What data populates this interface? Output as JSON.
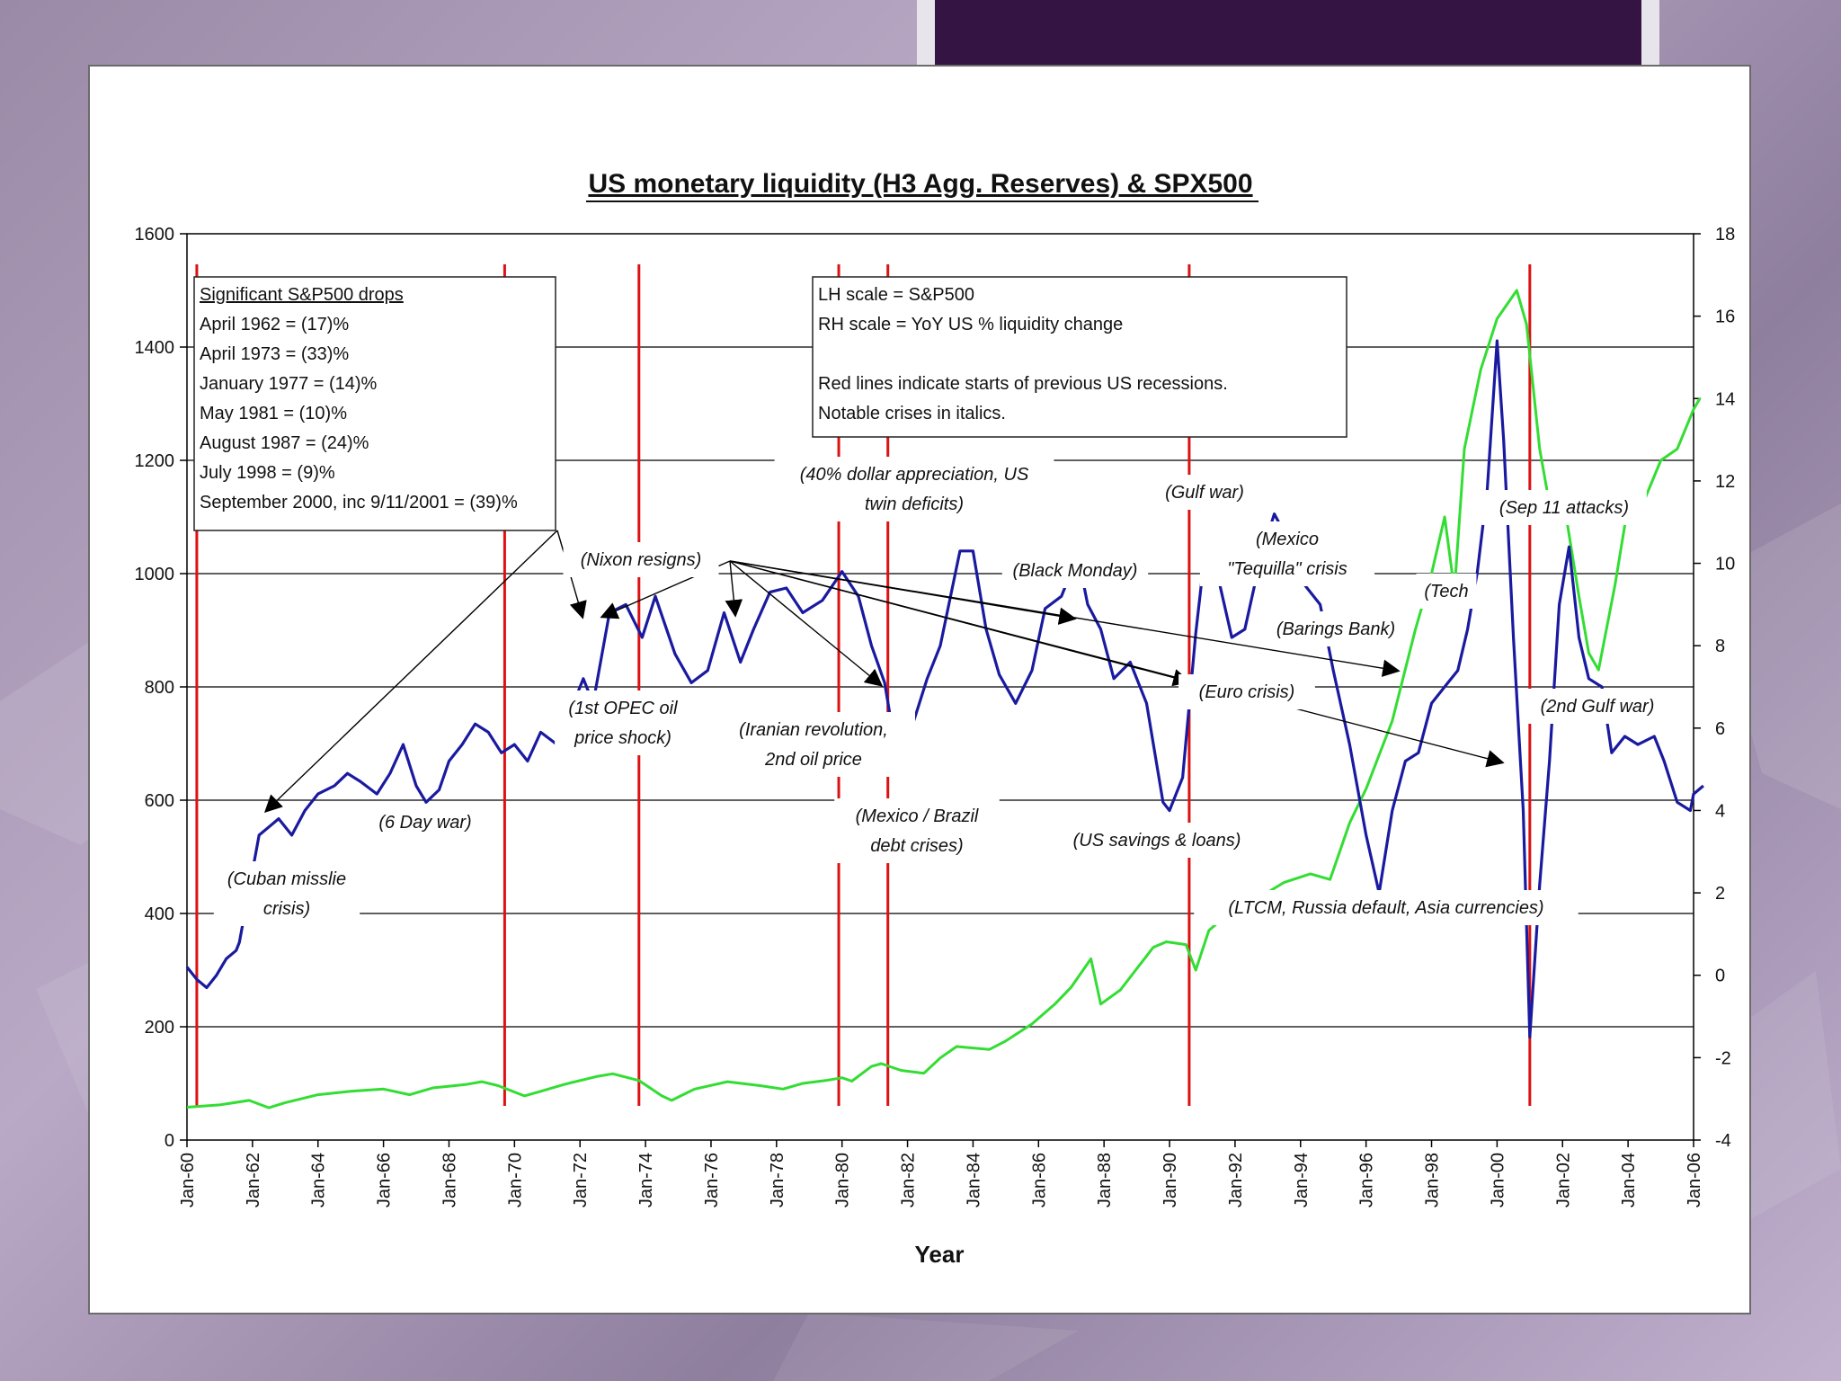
{
  "chart_data": {
    "type": "line",
    "title": "US monetary liquidity (H3 Agg. Reserves) & SPX500",
    "xlabel": "Year",
    "ylabel_left": "LH scale = S&P500",
    "ylabel_right": "RH scale = YoY US % liquidity change",
    "ylim_left": [
      0,
      1600
    ],
    "ylim_right": [
      -4,
      18
    ],
    "x_range": [
      1960.0,
      2006.0
    ],
    "x_ticks": [
      "Jan-60",
      "Jan-62",
      "Jan-64",
      "Jan-66",
      "Jan-68",
      "Jan-70",
      "Jan-72",
      "Jan-74",
      "Jan-76",
      "Jan-78",
      "Jan-80",
      "Jan-82",
      "Jan-84",
      "Jan-86",
      "Jan-88",
      "Jan-90",
      "Jan-92",
      "Jan-94",
      "Jan-96",
      "Jan-98",
      "Jan-00",
      "Jan-02",
      "Jan-04",
      "Jan-06"
    ],
    "y_ticks_left": [
      "1600",
      "1400",
      "1200",
      "1000",
      "800",
      "600",
      "400",
      "200",
      "0"
    ],
    "y_ticks_right": [
      "18",
      "16",
      "14",
      "12",
      "10",
      "8",
      "6",
      "4",
      "2",
      "0",
      "-2",
      "-4"
    ],
    "recession_lines": [
      1960.3,
      1969.7,
      1973.8,
      1979.9,
      1981.4,
      1990.6,
      2001.0
    ],
    "series": [
      {
        "name": "S&P500",
        "axis": "left",
        "color": "#33dd33",
        "points": [
          [
            1960.0,
            58
          ],
          [
            1961.0,
            62
          ],
          [
            1961.9,
            70
          ],
          [
            1962.5,
            57
          ],
          [
            1963.0,
            66
          ],
          [
            1964.0,
            80
          ],
          [
            1965.0,
            86
          ],
          [
            1966.0,
            90
          ],
          [
            1966.8,
            80
          ],
          [
            1967.5,
            92
          ],
          [
            1968.5,
            98
          ],
          [
            1969.0,
            103
          ],
          [
            1969.5,
            96
          ],
          [
            1970.3,
            78
          ],
          [
            1970.8,
            86
          ],
          [
            1971.5,
            98
          ],
          [
            1972.5,
            112
          ],
          [
            1973.0,
            117
          ],
          [
            1973.8,
            105
          ],
          [
            1974.5,
            78
          ],
          [
            1974.8,
            70
          ],
          [
            1975.5,
            90
          ],
          [
            1976.5,
            103
          ],
          [
            1977.5,
            96
          ],
          [
            1978.2,
            90
          ],
          [
            1978.8,
            100
          ],
          [
            1979.5,
            105
          ],
          [
            1980.0,
            110
          ],
          [
            1980.3,
            104
          ],
          [
            1980.9,
            130
          ],
          [
            1981.2,
            135
          ],
          [
            1981.8,
            123
          ],
          [
            1982.5,
            118
          ],
          [
            1983.0,
            145
          ],
          [
            1983.5,
            165
          ],
          [
            1984.5,
            160
          ],
          [
            1985.0,
            175
          ],
          [
            1985.8,
            205
          ],
          [
            1986.5,
            240
          ],
          [
            1987.0,
            270
          ],
          [
            1987.6,
            320
          ],
          [
            1987.9,
            240
          ],
          [
            1988.5,
            265
          ],
          [
            1989.5,
            340
          ],
          [
            1989.9,
            350
          ],
          [
            1990.5,
            345
          ],
          [
            1990.8,
            300
          ],
          [
            1991.2,
            370
          ],
          [
            1991.8,
            400
          ],
          [
            1992.5,
            420
          ],
          [
            1993.5,
            455
          ],
          [
            1994.3,
            470
          ],
          [
            1994.9,
            460
          ],
          [
            1995.5,
            560
          ],
          [
            1996.0,
            620
          ],
          [
            1996.8,
            740
          ],
          [
            1997.5,
            900
          ],
          [
            1998.0,
            1000
          ],
          [
            1998.4,
            1100
          ],
          [
            1998.7,
            970
          ],
          [
            1999.0,
            1220
          ],
          [
            1999.5,
            1360
          ],
          [
            2000.0,
            1450
          ],
          [
            2000.6,
            1500
          ],
          [
            2000.9,
            1440
          ],
          [
            2001.3,
            1220
          ],
          [
            2001.7,
            1090
          ],
          [
            2002.0,
            1140
          ],
          [
            2002.5,
            960
          ],
          [
            2002.8,
            860
          ],
          [
            2003.1,
            830
          ],
          [
            2003.6,
            980
          ],
          [
            2004.0,
            1120
          ],
          [
            2004.5,
            1130
          ],
          [
            2005.0,
            1200
          ],
          [
            2005.5,
            1220
          ],
          [
            2006.0,
            1290
          ],
          [
            2006.2,
            1310
          ]
        ]
      },
      {
        "name": "YoY US % liquidity change",
        "axis": "right",
        "color": "#1a1aa0",
        "points": [
          [
            1960.0,
            0.2
          ],
          [
            1960.3,
            -0.1
          ],
          [
            1960.6,
            -0.3
          ],
          [
            1960.9,
            0.0
          ],
          [
            1961.2,
            0.4
          ],
          [
            1961.5,
            0.6
          ],
          [
            1961.6,
            0.8
          ],
          [
            1962.2,
            3.4
          ],
          [
            1962.5,
            3.6
          ],
          [
            1962.8,
            3.8
          ],
          [
            1963.2,
            3.4
          ],
          [
            1963.6,
            4.0
          ],
          [
            1964.0,
            4.4
          ],
          [
            1964.5,
            4.6
          ],
          [
            1964.9,
            4.9
          ],
          [
            1965.3,
            4.7
          ],
          [
            1965.8,
            4.4
          ],
          [
            1966.2,
            4.9
          ],
          [
            1966.6,
            5.6
          ],
          [
            1967.0,
            4.6
          ],
          [
            1967.3,
            4.2
          ],
          [
            1967.7,
            4.5
          ],
          [
            1968.0,
            5.2
          ],
          [
            1968.4,
            5.6
          ],
          [
            1968.8,
            6.1
          ],
          [
            1969.2,
            5.9
          ],
          [
            1969.6,
            5.4
          ],
          [
            1970.0,
            5.6
          ],
          [
            1970.4,
            5.2
          ],
          [
            1970.8,
            5.9
          ],
          [
            1971.3,
            5.6
          ],
          [
            1972.1,
            7.2
          ],
          [
            1972.4,
            6.6
          ],
          [
            1972.9,
            8.8
          ],
          [
            1973.4,
            9.0
          ],
          [
            1973.9,
            8.2
          ],
          [
            1974.3,
            9.2
          ],
          [
            1974.9,
            7.8
          ],
          [
            1975.4,
            7.1
          ],
          [
            1975.9,
            7.4
          ],
          [
            1976.4,
            8.8
          ],
          [
            1976.9,
            7.6
          ],
          [
            1977.3,
            8.4
          ],
          [
            1977.8,
            9.3
          ],
          [
            1978.3,
            9.4
          ],
          [
            1978.8,
            8.8
          ],
          [
            1979.4,
            9.1
          ],
          [
            1980.0,
            9.8
          ],
          [
            1980.5,
            9.2
          ],
          [
            1980.9,
            8.0
          ],
          [
            1981.3,
            7.1
          ],
          [
            1981.7,
            5.2
          ],
          [
            1982.2,
            6.2
          ],
          [
            1982.6,
            7.2
          ],
          [
            1983.0,
            8.0
          ],
          [
            1983.6,
            10.3
          ],
          [
            1984.0,
            10.3
          ],
          [
            1984.4,
            8.4
          ],
          [
            1984.8,
            7.3
          ],
          [
            1985.3,
            6.6
          ],
          [
            1985.8,
            7.4
          ],
          [
            1986.2,
            8.9
          ],
          [
            1986.7,
            9.2
          ],
          [
            1987.2,
            10.2
          ],
          [
            1987.5,
            9.0
          ],
          [
            1987.9,
            8.4
          ],
          [
            1988.3,
            7.2
          ],
          [
            1988.8,
            7.6
          ],
          [
            1989.3,
            6.6
          ],
          [
            1989.8,
            4.2
          ],
          [
            1990.0,
            4.0
          ],
          [
            1990.4,
            4.8
          ],
          [
            1990.8,
            8.3
          ],
          [
            1991.1,
            10.4
          ],
          [
            1991.5,
            9.6
          ],
          [
            1991.9,
            8.2
          ],
          [
            1992.3,
            8.4
          ],
          [
            1992.8,
            10.2
          ],
          [
            1993.2,
            11.2
          ],
          [
            1993.6,
            10.6
          ],
          [
            1994.0,
            9.6
          ],
          [
            1994.6,
            9.0
          ],
          [
            1995.0,
            7.4
          ],
          [
            1995.5,
            5.6
          ],
          [
            1996.0,
            3.4
          ],
          [
            1996.4,
            2.0
          ],
          [
            1996.8,
            4.0
          ],
          [
            1997.2,
            5.2
          ],
          [
            1997.6,
            5.4
          ],
          [
            1998.0,
            6.6
          ],
          [
            1998.5,
            7.1
          ],
          [
            1998.8,
            7.4
          ],
          [
            1999.1,
            8.4
          ],
          [
            1999.4,
            9.8
          ],
          [
            1999.7,
            11.8
          ],
          [
            2000.0,
            15.4
          ],
          [
            2000.2,
            13.0
          ],
          [
            2000.5,
            8.2
          ],
          [
            2000.8,
            4.0
          ],
          [
            2001.0,
            -1.5
          ],
          [
            2001.3,
            2.2
          ],
          [
            2001.6,
            5.2
          ],
          [
            2001.9,
            9.0
          ],
          [
            2002.2,
            10.4
          ],
          [
            2002.5,
            8.2
          ],
          [
            2002.8,
            7.2
          ],
          [
            2003.2,
            7.0
          ],
          [
            2003.5,
            5.4
          ],
          [
            2003.9,
            5.8
          ],
          [
            2004.3,
            5.6
          ],
          [
            2004.8,
            5.8
          ],
          [
            2005.1,
            5.2
          ],
          [
            2005.5,
            4.2
          ],
          [
            2005.9,
            4.0
          ],
          [
            2006.0,
            4.4
          ],
          [
            2006.3,
            4.6
          ]
        ]
      }
    ],
    "legend_box_1": {
      "heading": "Significant S&P500 drops",
      "lines": [
        "April 1962 = (17)%",
        "April 1973 = (33)%",
        "January 1977 = (14)%",
        "May 1981 = (10)%",
        "August 1987 = (24)%",
        "July 1998 = (9)%",
        "September 2000, inc 9/11/2001 = (39)%"
      ]
    },
    "legend_box_2": {
      "lines": [
        "LH scale = S&P500",
        "RH scale = YoY US % liquidity change",
        "",
        "Red lines indicate starts of previous US recessions.",
        "Notable crises in italics."
      ]
    },
    "annotations": [
      {
        "id": "cuban",
        "lines": [
          "(Cuban misslie",
          "crisis)"
        ]
      },
      {
        "id": "sixday",
        "lines": [
          "(6 Day war)"
        ]
      },
      {
        "id": "nixon",
        "lines": [
          "(Nixon resigns)"
        ]
      },
      {
        "id": "opec",
        "lines": [
          "(1st OPEC oil",
          "price shock)"
        ]
      },
      {
        "id": "iran",
        "lines": [
          "(Iranian revolution,",
          "2nd oil price"
        ]
      },
      {
        "id": "dollar",
        "lines": [
          "(40% dollar appreciation, US",
          "twin deficits)"
        ]
      },
      {
        "id": "mexbrazil",
        "lines": [
          "(Mexico / Brazil",
          "debt crises)"
        ]
      },
      {
        "id": "blackmon",
        "lines": [
          "(Black Monday)"
        ]
      },
      {
        "id": "gulf",
        "lines": [
          "(Gulf war)"
        ]
      },
      {
        "id": "tequila",
        "lines": [
          "(Mexico",
          "\"Tequilla\" crisis"
        ]
      },
      {
        "id": "savings",
        "lines": [
          "(US savings & loans)"
        ]
      },
      {
        "id": "euro",
        "lines": [
          "(Euro crisis)"
        ]
      },
      {
        "id": "barings",
        "lines": [
          "(Barings Bank)"
        ]
      },
      {
        "id": "tech",
        "lines": [
          "(Tech"
        ]
      },
      {
        "id": "sep11",
        "lines": [
          "(Sep 11 attacks)"
        ]
      },
      {
        "id": "gulf2",
        "lines": [
          "(2nd Gulf war)"
        ]
      },
      {
        "id": "ltcm",
        "lines": [
          "(LTCM, Russia default, Asia currencies)"
        ]
      }
    ]
  }
}
